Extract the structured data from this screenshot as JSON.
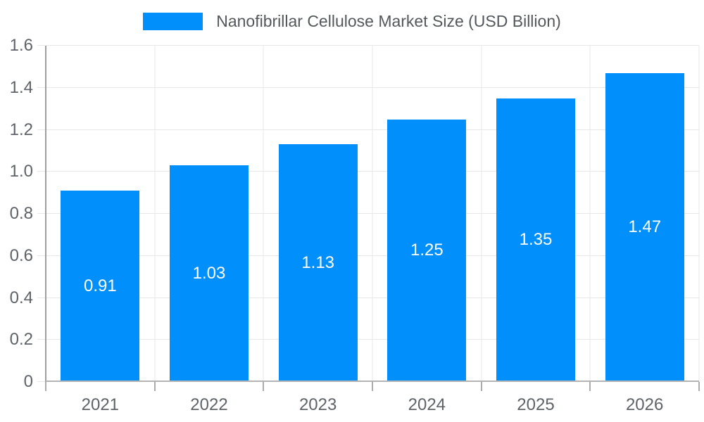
{
  "legend": {
    "label": "Nanofibrillar Cellulose Market Size (USD Billion)",
    "swatch_color": "#008FFB"
  },
  "chart_data": {
    "type": "bar",
    "title": "Nanofibrillar Cellulose Market Size (USD Billion)",
    "categories": [
      "2021",
      "2022",
      "2023",
      "2024",
      "2025",
      "2026"
    ],
    "series": [
      {
        "name": "Nanofibrillar Cellulose Market Size (USD Billion)",
        "values": [
          0.91,
          1.03,
          1.13,
          1.25,
          1.35,
          1.47
        ],
        "labels": [
          "0.91",
          "1.03",
          "1.13",
          "1.25",
          "1.35",
          "1.47"
        ],
        "color": "#008FFB"
      }
    ],
    "xlabel": "",
    "ylabel": "",
    "ylim": [
      0,
      1.6
    ],
    "y_tick_labels": [
      "0",
      "0.2",
      "0.4",
      "0.6",
      "0.8",
      "1.0",
      "1.2",
      "1.4",
      "1.6"
    ],
    "grid": true,
    "legend_position": "top-center",
    "colors": {
      "bar": "#008FFB",
      "bar_value_text": "#ffffff",
      "grid_line": "#e7e7e7",
      "y_axis_line": "#9e9e9e",
      "x_baseline": "#b4b4b4",
      "tick_mark": "#ababab",
      "axis_text": "#5f6368",
      "legend_text": "#54585b",
      "background": "#ffffff"
    }
  }
}
